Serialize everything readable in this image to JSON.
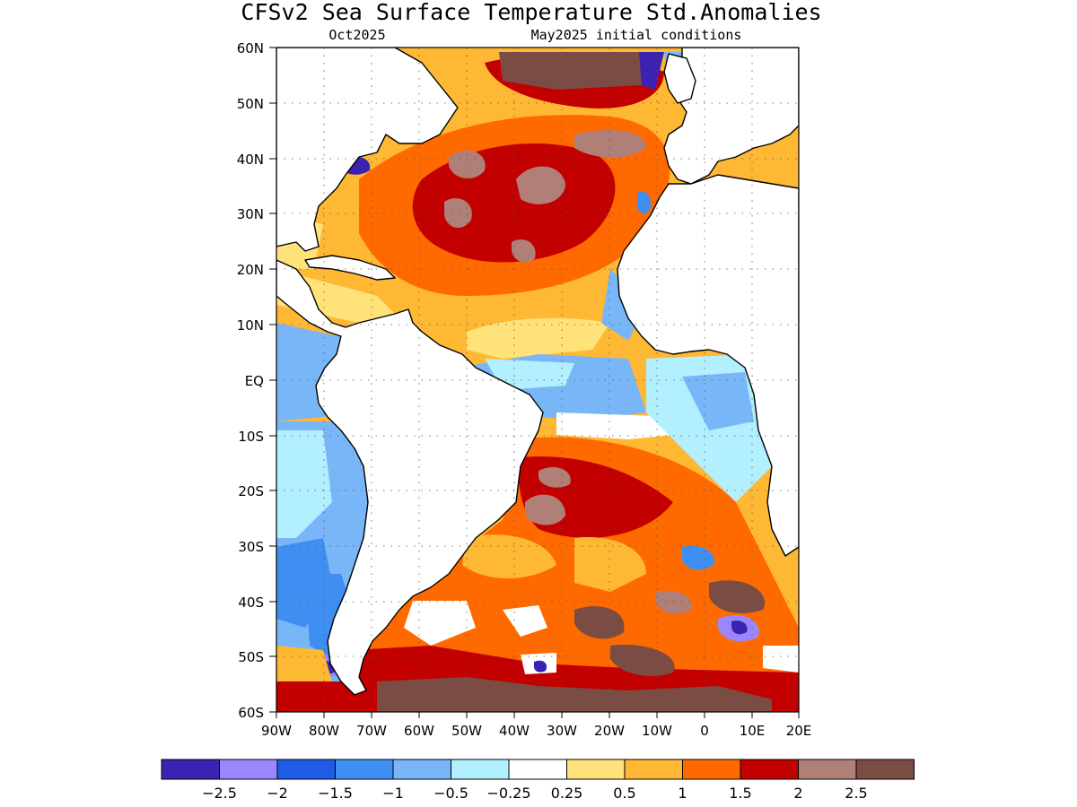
{
  "map": {
    "title": "CFSv2 Sea Surface Temperature Std.Anomalies",
    "valid_month": "Oct2025",
    "initial_conditions": "May2025 initial conditions",
    "lat_labels": [
      "60N",
      "50N",
      "40N",
      "30N",
      "20N",
      "10N",
      "EQ",
      "10S",
      "20S",
      "30S",
      "40S",
      "50S",
      "60S"
    ],
    "lon_labels": [
      "90W",
      "80W",
      "70W",
      "60W",
      "50W",
      "40W",
      "30W",
      "20W",
      "10W",
      "0",
      "10E",
      "20E"
    ],
    "extent": {
      "lon": [
        -90,
        20
      ],
      "lat": [
        -60,
        60
      ]
    },
    "land_color": "#ffffff",
    "gridlines": "dotted"
  },
  "colorbar": {
    "colors": [
      "#3b22b2",
      "#9a86ff",
      "#1f5ce6",
      "#3f8ff2",
      "#78b6f7",
      "#b2efff",
      "#ffffff",
      "#ffe27a",
      "#ffb834",
      "#ff6a00",
      "#c20000",
      "#b07f78",
      "#7a4c43"
    ],
    "labels": [
      "−2.5",
      "−2",
      "−1.5",
      "−1",
      "−0.5",
      "−0.25",
      "0.25",
      "0.5",
      "1",
      "1.5",
      "2",
      "2.5"
    ]
  }
}
